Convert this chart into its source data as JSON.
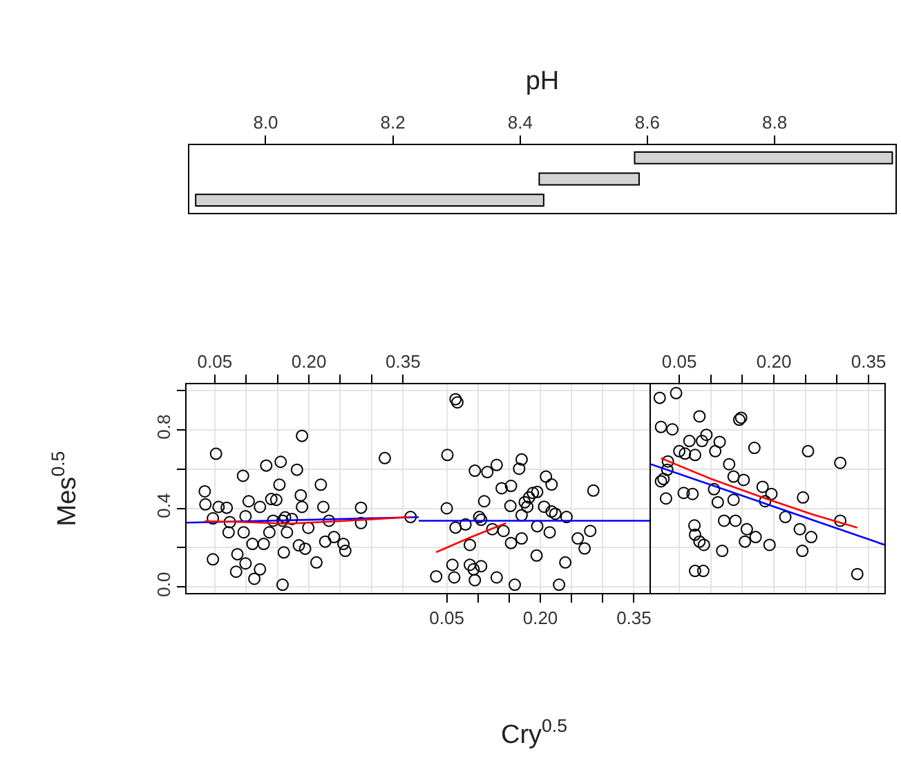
{
  "chart_data": [
    {
      "type": "bar",
      "orientation": "horizontal",
      "xlabel": "pH",
      "categories": [
        null,
        null,
        null
      ],
      "values": [
        0.405,
        0.157,
        0.547
      ],
      "base": [
        8.58,
        8.43,
        7.89
      ],
      "color": "#d3d3d3",
      "xlim": [
        7.88,
        8.99
      ],
      "xticks": [
        {
          "value": 8.0,
          "label": "8.0"
        },
        8.2,
        8.4,
        8.6,
        8.8
      ],
      "tick_labels": "x",
      "grid": false
    },
    {
      "type": "scatter",
      "ylabel": "Mes$^{0.5}$",
      "xlim": [
        0.005,
        0.375
      ],
      "ylim": [
        -0.03,
        1.03
      ],
      "xticks": [
        0.05,
        {
          "value": 0.1,
          "label": null
        },
        {
          "value": 0.15,
          "label": null
        },
        {
          "value": 0.2,
          "label": "0.20"
        },
        {
          "value": 0.25,
          "label": null
        },
        {
          "value": 0.3,
          "label": null
        },
        0.35
      ],
      "yticks": [
        {
          "value": 0,
          "label": "0.0"
        },
        {
          "value": 0.2,
          "label": null
        },
        0.4,
        {
          "value": 0.6,
          "label": null
        },
        0.8,
        {
          "value": 1,
          "label": null
        }
      ],
      "grid": true,
      "line_style": "solid",
      "series": [
        {
          "type": "scatter",
          "marker": "circle",
          "color": "#000000",
          "x": [
            0.034,
            0.035,
            0.052,
            0.047,
            0.069,
            0.047,
            0.074,
            0.072,
            0.095,
            0.104,
            0.086,
            0.099,
            0.084,
            0.113,
            0.122,
            0.11,
            0.096,
            0.137,
            0.132,
            0.155,
            0.181,
            0.189,
            0.153,
            0.14,
            0.148,
            0.187,
            0.189,
            0.158,
            0.173,
            0.165,
            0.16,
            0.158,
            0.184,
            0.194,
            0.212,
            0.199,
            0.219,
            0.223,
            0.226,
            0.24,
            0.255,
            0.258,
            0.283,
            0.283,
            0.321,
            0.362,
            0.162,
            0.122,
            0.099,
            0.128,
            0.143,
            0.056,
            0.232
          ],
          "values": [
            0.486,
            0.42,
            0.677,
            0.349,
            0.403,
            0.141,
            0.33,
            0.278,
            0.565,
            0.436,
            0.167,
            0.12,
            0.078,
            0.042,
            0.09,
            0.219,
            0.278,
            0.278,
            0.617,
            0.636,
            0.596,
            0.768,
            0.52,
            0.447,
            0.443,
            0.466,
            0.407,
            0.337,
            0.346,
            0.278,
            0.176,
            0.012,
            0.212,
            0.195,
            0.125,
            0.301,
            0.52,
            0.407,
            0.231,
            0.254,
            0.219,
            0.184,
            0.403,
            0.325,
            0.655,
            0.356,
            0.354,
            0.407,
            0.36,
            0.219,
            0.337,
            0.407,
            0.337
          ]
        },
        {
          "type": "line",
          "marker": "none",
          "color": "#0000ff",
          "x": [
            0.005,
            0.375
          ],
          "values": [
            0.327,
            0.355
          ]
        },
        {
          "type": "line",
          "marker": "none",
          "color": "#ff0000",
          "x": [
            0.034,
            0.1,
            0.165,
            0.25,
            0.362
          ],
          "values": [
            0.335,
            0.33,
            0.322,
            0.335,
            0.356
          ]
        }
      ]
    },
    {
      "type": "scatter",
      "xlabel": "Cry$^{0.5}$",
      "xlim": [
        0.005,
        0.375
      ],
      "ylim": [
        -0.03,
        1.03
      ],
      "xticks": [
        0.05,
        {
          "value": 0.1,
          "label": null
        },
        {
          "value": 0.15,
          "label": null
        },
        {
          "value": 0.2,
          "label": "0.20"
        },
        {
          "value": 0.25,
          "label": null
        },
        {
          "value": 0.3,
          "label": null
        },
        0.35
      ],
      "yticks": [
        {
          "value": 0,
          "label": null
        },
        {
          "value": 0.2,
          "label": null
        },
        {
          "value": 0.4,
          "label": null
        },
        {
          "value": 0.6,
          "label": null
        },
        {
          "value": 0.8,
          "label": null
        },
        {
          "value": 1,
          "label": null
        }
      ],
      "tick_labels": "x",
      "grid": true,
      "line_style": "solid",
      "series": [
        {
          "type": "scatter",
          "marker": "circle",
          "color": "#000000",
          "x": [
            0.064,
            0.067,
            0.051,
            0.05,
            0.095,
            0.115,
            0.13,
            0.17,
            0.166,
            0.138,
            0.153,
            0.11,
            0.105,
            0.064,
            0.08,
            0.102,
            0.123,
            0.141,
            0.087,
            0.153,
            0.17,
            0.059,
            0.062,
            0.033,
            0.087,
            0.105,
            0.095,
            0.093,
            0.13,
            0.159,
            0.175,
            0.182,
            0.188,
            0.195,
            0.179,
            0.17,
            0.209,
            0.218,
            0.206,
            0.218,
            0.224,
            0.195,
            0.215,
            0.242,
            0.194,
            0.24,
            0.23,
            0.26,
            0.28,
            0.271,
            0.285,
            0.152
          ],
          "values": [
            0.954,
            0.938,
            0.671,
            0.4,
            0.591,
            0.584,
            0.62,
            0.648,
            0.601,
            0.502,
            0.514,
            0.436,
            0.342,
            0.302,
            0.318,
            0.356,
            0.294,
            0.285,
            0.214,
            0.224,
            0.247,
            0.113,
            0.049,
            0.054,
            0.113,
            0.106,
            0.035,
            0.09,
            0.049,
            0.012,
            0.431,
            0.455,
            0.478,
            0.483,
            0.408,
            0.365,
            0.561,
            0.521,
            0.408,
            0.384,
            0.372,
            0.309,
            0.278,
            0.356,
            0.16,
            0.125,
            0.012,
            0.247,
            0.285,
            0.196,
            0.49,
            0.412
          ]
        },
        {
          "type": "line",
          "marker": "none",
          "color": "#0000ff",
          "x": [
            0.005,
            0.375
          ],
          "values": [
            0.337,
            0.337
          ]
        },
        {
          "type": "line",
          "marker": "none",
          "color": "#ff0000",
          "x": [
            0.033,
            0.09,
            0.145
          ],
          "values": [
            0.177,
            0.255,
            0.325
          ]
        }
      ]
    },
    {
      "type": "scatter",
      "xlim": [
        0.005,
        0.375
      ],
      "ylim": [
        -0.03,
        1.03
      ],
      "xticks": [
        0.05,
        {
          "value": 0.1,
          "label": null
        },
        {
          "value": 0.15,
          "label": null
        },
        {
          "value": 0.2,
          "label": "0.20"
        },
        {
          "value": 0.25,
          "label": null
        },
        {
          "value": 0.3,
          "label": null
        },
        0.35
      ],
      "yticks": [
        {
          "value": 0,
          "label": null
        },
        {
          "value": 0.2,
          "label": null
        },
        {
          "value": 0.4,
          "label": null
        },
        {
          "value": 0.6,
          "label": null
        },
        {
          "value": 0.8,
          "label": null
        },
        {
          "value": 1,
          "label": null
        }
      ],
      "tick_labels": "x",
      "grid": true,
      "line_style": "solid",
      "series": [
        {
          "type": "scatter",
          "marker": "circle",
          "color": "#000000",
          "x": [
            0.019,
            0.045,
            0.021,
            0.039,
            0.082,
            0.145,
            0.148,
            0.066,
            0.086,
            0.093,
            0.114,
            0.05,
            0.059,
            0.075,
            0.107,
            0.169,
            0.254,
            0.305,
            0.032,
            0.031,
            0.025,
            0.021,
            0.129,
            0.136,
            0.152,
            0.057,
            0.071,
            0.029,
            0.105,
            0.111,
            0.136,
            0.182,
            0.196,
            0.186,
            0.246,
            0.218,
            0.121,
            0.139,
            0.074,
            0.075,
            0.082,
            0.089,
            0.157,
            0.154,
            0.171,
            0.118,
            0.193,
            0.241,
            0.259,
            0.245,
            0.305,
            0.075,
            0.088,
            0.332
          ],
          "values": [
            0.961,
            0.985,
            0.813,
            0.801,
            0.867,
            0.85,
            0.86,
            0.742,
            0.742,
            0.773,
            0.737,
            0.69,
            0.678,
            0.671,
            0.69,
            0.707,
            0.69,
            0.631,
            0.638,
            0.596,
            0.549,
            0.537,
            0.624,
            0.561,
            0.544,
            0.478,
            0.473,
            0.45,
            0.497,
            0.431,
            0.443,
            0.509,
            0.473,
            0.436,
            0.455,
            0.356,
            0.337,
            0.337,
            0.313,
            0.266,
            0.231,
            0.214,
            0.294,
            0.231,
            0.254,
            0.184,
            0.214,
            0.294,
            0.254,
            0.184,
            0.337,
            0.082,
            0.082,
            0.066
          ]
        },
        {
          "type": "line",
          "marker": "none",
          "color": "#0000ff",
          "x": [
            0.005,
            0.375
          ],
          "values": [
            0.624,
            0.215
          ]
        },
        {
          "type": "line",
          "marker": "none",
          "color": "#ff0000",
          "x": [
            0.021,
            0.1,
            0.182,
            0.26,
            0.332
          ],
          "values": [
            0.655,
            0.55,
            0.455,
            0.37,
            0.302
          ]
        }
      ]
    }
  ]
}
